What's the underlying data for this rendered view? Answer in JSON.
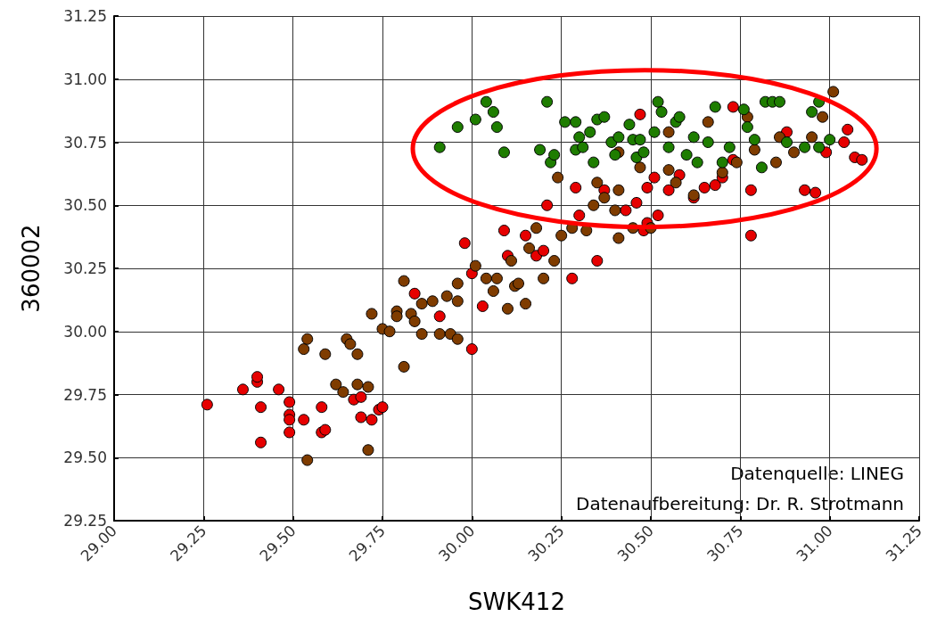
{
  "chart_data": {
    "type": "scatter",
    "xlabel": "SWK412",
    "ylabel": "360002",
    "marker": "circle",
    "grid": true,
    "xlim": [
      29,
      31.25
    ],
    "ylim": [
      29.25,
      31.25
    ],
    "xticks": [
      {
        "value": 29,
        "label": "29.00"
      },
      {
        "value": 29.25,
        "label": "29.25"
      },
      {
        "value": 29.5,
        "label": "29.50"
      },
      {
        "value": 29.75,
        "label": "29.75"
      },
      {
        "value": 30,
        "label": "30.00"
      },
      {
        "value": 30.25,
        "label": "30.25"
      },
      {
        "value": 30.5,
        "label": "30.50"
      },
      {
        "value": 30.75,
        "label": "30.75"
      },
      {
        "value": 31,
        "label": "31.00"
      },
      {
        "value": 31.25,
        "label": "31.25"
      }
    ],
    "yticks": [
      {
        "value": 29.25,
        "label": "29.25"
      },
      {
        "value": 29.5,
        "label": "29.50"
      },
      {
        "value": 29.75,
        "label": "29.75"
      },
      {
        "value": 30,
        "label": "30.00"
      },
      {
        "value": 30.25,
        "label": "30.25"
      },
      {
        "value": 30.5,
        "label": "30.50"
      },
      {
        "value": 30.75,
        "label": "30.75"
      },
      {
        "value": 31,
        "label": "31.00"
      },
      {
        "value": 31.25,
        "label": "31.25"
      }
    ],
    "annotations": [
      "Datenquelle: LINEG",
      "Datenaufbereitung: Dr. R. Strotmann"
    ],
    "series": [
      {
        "color": "#e60000",
        "x": [
          29.26,
          29.36,
          29.4,
          29.4,
          29.41,
          29.41,
          29.46,
          29.49,
          29.49,
          29.49,
          29.49,
          29.53,
          29.58,
          29.58,
          29.59,
          29.67,
          29.69,
          29.69,
          29.72,
          29.74,
          29.75,
          29.84,
          29.91,
          29.98,
          30,
          30,
          30.03,
          30.09,
          30.1,
          30.18,
          30.15,
          30.2,
          30.28,
          30.21,
          30.29,
          30.3,
          30.35,
          30.37,
          30.43,
          30.46,
          30.48,
          30.49,
          30.52,
          30.49,
          30.51,
          30.55,
          30.58,
          30.62,
          30.65,
          30.68,
          30.7,
          30.73,
          30.78,
          30.78,
          30.88,
          30.93,
          30.96,
          30.99,
          31.04,
          31.07,
          31.09,
          31.05,
          30.73,
          30.47
        ],
        "values": [
          29.71,
          29.77,
          29.8,
          29.82,
          29.7,
          29.56,
          29.77,
          29.72,
          29.67,
          29.65,
          29.6,
          29.65,
          29.7,
          29.6,
          29.61,
          29.73,
          29.66,
          29.74,
          29.65,
          29.69,
          29.7,
          30.15,
          30.06,
          30.35,
          30.23,
          29.93,
          30.1,
          30.4,
          30.3,
          30.3,
          30.38,
          30.32,
          30.21,
          30.5,
          30.57,
          30.46,
          30.28,
          30.56,
          30.48,
          30.51,
          30.4,
          30.43,
          30.46,
          30.57,
          30.61,
          30.56,
          30.62,
          30.53,
          30.57,
          30.58,
          30.61,
          30.68,
          30.38,
          30.56,
          30.79,
          30.56,
          30.55,
          30.71,
          30.75,
          30.69,
          30.68,
          30.8,
          30.89,
          30.86
        ]
      },
      {
        "color": "#7f3c00",
        "x": [
          29.54,
          29.53,
          29.54,
          29.59,
          29.62,
          29.64,
          29.65,
          29.66,
          29.68,
          29.68,
          29.71,
          29.71,
          29.72,
          29.75,
          29.77,
          29.79,
          29.79,
          29.81,
          29.81,
          29.83,
          29.84,
          29.86,
          29.86,
          29.89,
          29.91,
          29.93,
          29.94,
          29.96,
          29.96,
          29.96,
          30.01,
          30.04,
          30.06,
          30.07,
          30.1,
          30.11,
          30.12,
          30.13,
          30.15,
          30.16,
          30.18,
          30.2,
          30.23,
          30.25,
          30.24,
          30.28,
          30.32,
          30.34,
          30.37,
          30.4,
          30.41,
          30.41,
          30.45,
          30.5,
          30.55,
          30.57,
          30.62,
          30.66,
          30.7,
          30.74,
          30.77,
          30.79,
          30.86,
          30.9,
          30.95,
          31.01,
          30.98,
          30.85,
          30.41,
          30.35,
          30.47,
          30.55
        ],
        "values": [
          29.49,
          29.93,
          29.97,
          29.91,
          29.79,
          29.76,
          29.97,
          29.95,
          29.91,
          29.79,
          29.78,
          29.53,
          30.07,
          30.01,
          30,
          30.08,
          30.06,
          30.2,
          29.86,
          30.07,
          30.04,
          30.11,
          29.99,
          30.12,
          29.99,
          30.14,
          29.99,
          29.97,
          30.12,
          30.19,
          30.26,
          30.21,
          30.16,
          30.21,
          30.09,
          30.28,
          30.18,
          30.19,
          30.11,
          30.33,
          30.41,
          30.21,
          30.28,
          30.38,
          30.61,
          30.41,
          30.4,
          30.5,
          30.53,
          30.48,
          30.37,
          30.56,
          30.41,
          30.41,
          30.79,
          30.59,
          30.54,
          30.83,
          30.63,
          30.67,
          30.85,
          30.72,
          30.77,
          30.71,
          30.77,
          30.95,
          30.85,
          30.67,
          30.71,
          30.59,
          30.65,
          30.64
        ]
      },
      {
        "color": "#1e7d00",
        "x": [
          29.91,
          29.96,
          30.01,
          30.04,
          30.06,
          30.07,
          30.09,
          30.21,
          30.19,
          30.22,
          30.23,
          30.26,
          30.29,
          30.3,
          30.29,
          30.31,
          30.33,
          30.34,
          30.35,
          30.37,
          30.39,
          30.4,
          30.41,
          30.44,
          30.45,
          30.46,
          30.47,
          30.48,
          30.51,
          30.52,
          30.53,
          30.55,
          30.57,
          30.58,
          30.6,
          30.62,
          30.63,
          30.66,
          30.68,
          30.7,
          30.72,
          30.76,
          30.77,
          30.79,
          30.81,
          30.82,
          30.84,
          30.86,
          30.88,
          30.93,
          30.95,
          30.97,
          31,
          30.97
        ],
        "values": [
          30.73,
          30.81,
          30.84,
          30.91,
          30.87,
          30.81,
          30.71,
          30.91,
          30.72,
          30.67,
          30.7,
          30.83,
          30.83,
          30.77,
          30.72,
          30.73,
          30.79,
          30.67,
          30.84,
          30.85,
          30.75,
          30.7,
          30.77,
          30.82,
          30.76,
          30.69,
          30.76,
          30.71,
          30.79,
          30.91,
          30.87,
          30.73,
          30.83,
          30.85,
          30.7,
          30.77,
          30.67,
          30.75,
          30.89,
          30.67,
          30.73,
          30.88,
          30.81,
          30.76,
          30.65,
          30.91,
          30.91,
          30.91,
          30.75,
          30.73,
          30.87,
          30.91,
          30.76,
          30.73
        ]
      }
    ]
  }
}
